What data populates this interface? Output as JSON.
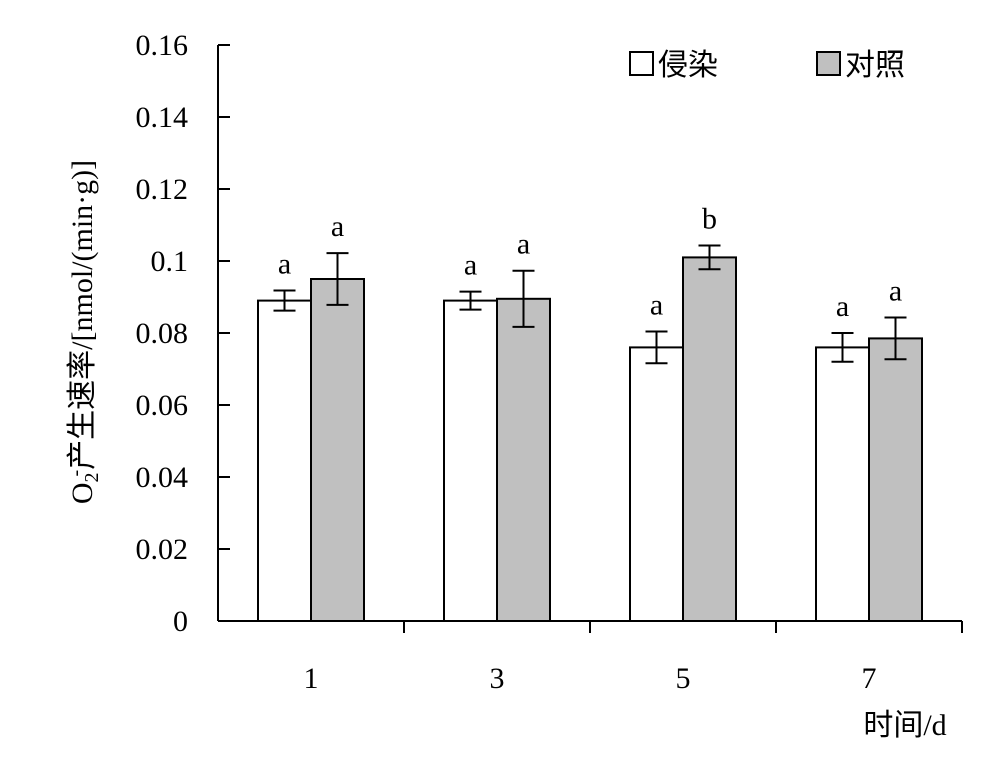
{
  "chart_data": {
    "type": "bar",
    "ylabel": {
      "prefix": "O",
      "subscript": "2",
      "superscript": "-",
      "rest": "产生速率/[nmol/(min·g)]"
    },
    "xlabel": "时间/d",
    "categories": [
      "1",
      "3",
      "5",
      "7"
    ],
    "ylim": [
      0,
      0.16
    ],
    "yticks": [
      {
        "value": 0,
        "label": "0"
      },
      {
        "value": 0.02,
        "label": "0.02"
      },
      {
        "value": 0.04,
        "label": "0.04"
      },
      {
        "value": 0.06,
        "label": "0.06"
      },
      {
        "value": 0.08,
        "label": "0.08"
      },
      {
        "value": 0.1,
        "label": "0.1"
      },
      {
        "value": 0.12,
        "label": "0.12"
      },
      {
        "value": 0.14,
        "label": "0.14"
      },
      {
        "value": 0.16,
        "label": "0.16"
      }
    ],
    "series": [
      {
        "name": "侵染",
        "color": "#ffffff",
        "values": [
          0.089,
          0.089,
          0.076,
          0.076
        ],
        "errors": [
          0.0028,
          0.0025,
          0.0044,
          0.004
        ],
        "labels": [
          "a",
          "a",
          "a",
          "a"
        ]
      },
      {
        "name": "对照",
        "color": "#c0c0c0",
        "values": [
          0.095,
          0.0895,
          0.101,
          0.0785
        ],
        "errors": [
          0.0072,
          0.0078,
          0.0033,
          0.0058
        ],
        "labels": [
          "a",
          "a",
          "b",
          "a"
        ]
      }
    ],
    "legend_position": "top-right",
    "grid": false
  }
}
